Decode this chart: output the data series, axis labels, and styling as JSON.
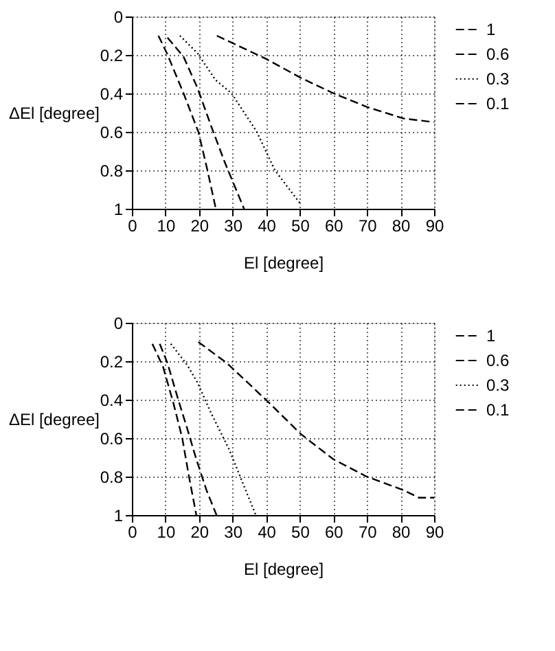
{
  "chart_data": [
    {
      "type": "line",
      "xlabel": "El [degree]",
      "ylabel": "ΔEl [degree]",
      "xlim": [
        0,
        90
      ],
      "xticks": [
        0,
        10,
        20,
        30,
        40,
        50,
        60,
        70,
        80,
        90
      ],
      "ylim": [
        1,
        0
      ],
      "yticks": [
        0,
        0.2,
        0.4,
        0.6,
        0.8,
        1
      ],
      "grid": true,
      "legend": "top right",
      "series": [
        {
          "name": "1",
          "color": "#000000",
          "line_style": "dashed",
          "x": [
            7.9,
            10.4,
            15.4,
            19.8,
            22.5,
            25
          ],
          "values": [
            0.1,
            0.19,
            0.4,
            0.6,
            0.8,
            1
          ]
        },
        {
          "name": "0.6",
          "color": "#000000",
          "line_style": "dashed",
          "x": [
            10.6,
            15.4,
            19.5,
            23.6,
            27.7,
            33.4
          ],
          "values": [
            0.11,
            0.21,
            0.37,
            0.57,
            0.76,
            1
          ]
        },
        {
          "name": "0.3",
          "color": "#000000",
          "line_style": "dotted",
          "x": [
            14.3,
            19.5,
            24.9,
            29.7,
            37.2,
            42.6,
            50
          ],
          "values": [
            0.1,
            0.19,
            0.33,
            0.4,
            0.6,
            0.8,
            0.97
          ]
        },
        {
          "name": "0.1",
          "color": "#000000",
          "line_style": "dashed",
          "x": [
            25.3,
            39.9,
            50.4,
            60.1,
            69.9,
            80.8,
            90
          ],
          "values": [
            0.1,
            0.22,
            0.32,
            0.4,
            0.47,
            0.53,
            0.55
          ]
        }
      ]
    },
    {
      "type": "line",
      "xlabel": "El [degree]",
      "ylabel": "ΔEl [degree]",
      "xlim": [
        0,
        90
      ],
      "xticks": [
        0,
        10,
        20,
        30,
        40,
        50,
        60,
        70,
        80,
        90
      ],
      "ylim": [
        1,
        0
      ],
      "yticks": [
        0,
        0.2,
        0.4,
        0.6,
        0.8,
        1
      ],
      "grid": true,
      "legend": "top right",
      "series": [
        {
          "name": "1",
          "color": "#000000",
          "line_style": "dashed",
          "x": [
            6.1,
            9.3,
            12.4,
            15,
            17,
            19.2
          ],
          "values": [
            0.11,
            0.23,
            0.42,
            0.6,
            0.8,
            1
          ]
        },
        {
          "name": "0.6",
          "color": "#000000",
          "line_style": "dashed",
          "x": [
            8.3,
            10.6,
            13.8,
            16.3,
            19.2,
            22.2,
            25.2
          ],
          "values": [
            0.11,
            0.21,
            0.4,
            0.54,
            0.71,
            0.87,
            1
          ]
        },
        {
          "name": "0.3",
          "color": "#000000",
          "line_style": "dotted",
          "x": [
            11.6,
            16.5,
            19.5,
            23.6,
            29,
            33.4,
            36.9
          ],
          "values": [
            0.11,
            0.22,
            0.31,
            0.47,
            0.66,
            0.85,
            1
          ]
        },
        {
          "name": "0.1",
          "color": "#000000",
          "line_style": "dashed",
          "x": [
            19.8,
            28.3,
            39.9,
            50.4,
            60,
            69.9,
            80.8,
            85.5,
            90
          ],
          "values": [
            0.1,
            0.21,
            0.4,
            0.58,
            0.71,
            0.8,
            0.87,
            0.91,
            0.91
          ]
        }
      ]
    }
  ]
}
